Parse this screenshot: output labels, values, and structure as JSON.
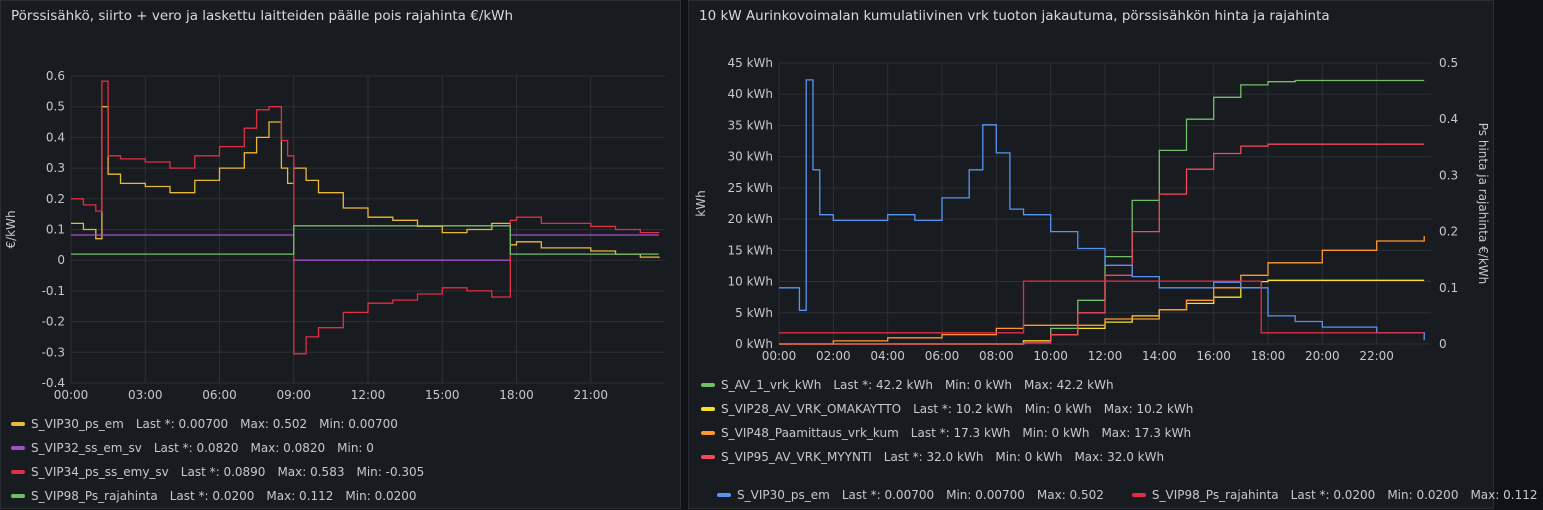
{
  "panels": [
    {
      "title": "Pörssisähkö, siirto + vero ja laskettu laitteiden päälle pois rajahinta €/kWh",
      "legend": [
        {
          "name": "S_VIP30_ps_em",
          "color": "#eab839",
          "stats": [
            "Last *: 0.00700",
            "Max: 0.502",
            "Min: 0.00700"
          ]
        },
        {
          "name": "S_VIP32_ss_em_sv",
          "color": "#a352cc",
          "stats": [
            "Last *: 0.0820",
            "Max: 0.0820",
            "Min: 0"
          ]
        },
        {
          "name": "S_VIP34_ps_ss_emy_sv",
          "color": "#e02f44",
          "stats": [
            "Last *: 0.0890",
            "Max: 0.583",
            "Min: -0.305"
          ]
        },
        {
          "name": "S_VIP98_Ps_rajahinta",
          "color": "#73bf69",
          "stats": [
            "Last *: 0.0200",
            "Max: 0.112",
            "Min: 0.0200"
          ]
        }
      ]
    },
    {
      "title": "10 kW Aurinkovoimalan kumulatiivinen vrk tuoton jakautuma, pörssisähkön hinta ja rajahinta",
      "legend": [
        {
          "name": "S_AV_1_vrk_kWh",
          "color": "#73bf69",
          "stats": [
            "Last *: 42.2 kWh",
            "Min: 0 kWh",
            "Max: 42.2 kWh"
          ]
        },
        {
          "name": "S_VIP28_AV_VRK_OMAKAYTTO",
          "color": "#fade2a",
          "stats": [
            "Last *: 10.2 kWh",
            "Min: 0 kWh",
            "Max: 10.2 kWh"
          ]
        },
        {
          "name": "S_VIP48_Paamittaus_vrk_kum",
          "color": "#ff9830",
          "stats": [
            "Last *: 17.3 kWh",
            "Min: 0 kWh",
            "Max: 17.3 kWh"
          ]
        },
        {
          "name": "S_VIP95_AV_VRK_MYYNTI",
          "color": "#f2495c",
          "stats": [
            "Last *: 32.0 kWh",
            "Min: 0 kWh",
            "Max: 32.0 kWh"
          ]
        }
      ],
      "legend_right": [
        {
          "name": "S_VIP30_ps_em",
          "color": "#5794f2",
          "stats": [
            "Last *: 0.00700",
            "Min: 0.00700",
            "Max: 0.502"
          ]
        },
        {
          "name": "S_VIP98_Ps_rajahinta",
          "color": "#e02f44",
          "stats": [
            "Last *: 0.0200",
            "Min: 0.0200",
            "Max: 0.112"
          ]
        }
      ]
    }
  ],
  "chart_data": [
    {
      "type": "line",
      "ylabel": "€/kWh",
      "ylim": [
        -0.4,
        0.6
      ],
      "yticks": [
        "0.6",
        "0.5",
        "0.4",
        "0.3",
        "0.2",
        "0.1",
        "0",
        "-0.1",
        "-0.2",
        "-0.3",
        "-0.4"
      ],
      "xlim": [
        "00:00",
        "24:00"
      ],
      "xticks": [
        "00:00",
        "03:00",
        "06:00",
        "09:00",
        "12:00",
        "15:00",
        "18:00",
        "21:00"
      ],
      "series": [
        {
          "name": "S_VIP30_ps_em",
          "color": "#eab839",
          "x": [
            "00:00",
            "00:30",
            "01:00",
            "01:15",
            "01:30",
            "02:00",
            "03:00",
            "04:00",
            "05:00",
            "06:00",
            "07:00",
            "07:30",
            "08:00",
            "08:30",
            "08:45",
            "09:00",
            "09:30",
            "10:00",
            "11:00",
            "12:00",
            "13:00",
            "14:00",
            "15:00",
            "16:00",
            "17:00",
            "17:45",
            "18:00",
            "19:00",
            "20:00",
            "21:00",
            "22:00",
            "23:00",
            "23:45"
          ],
          "y": [
            0.12,
            0.1,
            0.07,
            0.5,
            0.28,
            0.25,
            0.24,
            0.22,
            0.26,
            0.3,
            0.35,
            0.4,
            0.45,
            0.3,
            0.25,
            0.3,
            0.26,
            0.22,
            0.17,
            0.14,
            0.13,
            0.11,
            0.09,
            0.1,
            0.12,
            0.05,
            0.06,
            0.04,
            0.04,
            0.03,
            0.02,
            0.01,
            0.007
          ]
        },
        {
          "name": "S_VIP32_ss_em_sv",
          "color": "#a352cc",
          "x": [
            "00:00",
            "08:59",
            "09:00",
            "17:44",
            "17:45",
            "23:45"
          ],
          "y": [
            0.082,
            0.082,
            0,
            0,
            0.082,
            0.082
          ]
        },
        {
          "name": "S_VIP34_ps_ss_emy_sv",
          "color": "#e02f44",
          "x": [
            "00:00",
            "00:30",
            "01:00",
            "01:15",
            "01:30",
            "02:00",
            "03:00",
            "04:00",
            "05:00",
            "06:00",
            "07:00",
            "07:30",
            "08:00",
            "08:30",
            "08:45",
            "09:00",
            "09:30",
            "10:00",
            "11:00",
            "12:00",
            "13:00",
            "14:00",
            "15:00",
            "16:00",
            "17:00",
            "17:45",
            "18:00",
            "19:00",
            "20:00",
            "21:00",
            "22:00",
            "23:00",
            "23:45"
          ],
          "y": [
            0.2,
            0.18,
            0.16,
            0.583,
            0.34,
            0.33,
            0.32,
            0.3,
            0.34,
            0.37,
            0.43,
            0.49,
            0.5,
            0.39,
            0.34,
            -0.305,
            -0.25,
            -0.22,
            -0.17,
            -0.14,
            -0.13,
            -0.11,
            -0.09,
            -0.1,
            -0.12,
            0.13,
            0.14,
            0.12,
            0.12,
            0.11,
            0.1,
            0.09,
            0.089
          ]
        },
        {
          "name": "S_VIP98_Ps_rajahinta",
          "color": "#73bf69",
          "x": [
            "00:00",
            "08:59",
            "09:00",
            "17:44",
            "17:45",
            "23:45"
          ],
          "y": [
            0.02,
            0.02,
            0.112,
            0.112,
            0.02,
            0.02
          ]
        }
      ]
    },
    {
      "type": "line",
      "ylabel": "kWh",
      "ylabel_right": "Ps hinta ja rajahinta €/kWh",
      "ylim": [
        0,
        45
      ],
      "ylim_right": [
        0,
        0.5
      ],
      "yticks": [
        "45 kWh",
        "40 kWh",
        "35 kWh",
        "30 kWh",
        "25 kWh",
        "20 kWh",
        "15 kWh",
        "10 kWh",
        "5 kWh",
        "0 kWh"
      ],
      "yticks_right": [
        "0.5",
        "0.4",
        "0.3",
        "0.2",
        "0.1",
        "0"
      ],
      "xlim": [
        "00:00",
        "24:00"
      ],
      "xticks": [
        "00:00",
        "02:00",
        "04:00",
        "06:00",
        "08:00",
        "10:00",
        "12:00",
        "14:00",
        "16:00",
        "18:00",
        "20:00",
        "22:00"
      ],
      "series": [
        {
          "name": "S_AV_1_vrk_kWh",
          "color": "#73bf69",
          "axis": "left",
          "x": [
            "00:00",
            "08:00",
            "09:00",
            "10:00",
            "11:00",
            "12:00",
            "13:00",
            "14:00",
            "15:00",
            "16:00",
            "17:00",
            "18:00",
            "19:00",
            "23:45"
          ],
          "y": [
            0,
            0,
            0.5,
            2.5,
            7,
            14,
            23,
            31,
            36,
            39.5,
            41.5,
            42,
            42.2,
            42.2
          ]
        },
        {
          "name": "S_VIP28_AV_VRK_OMAKAYTTO",
          "color": "#fade2a",
          "axis": "left",
          "x": [
            "00:00",
            "08:00",
            "09:00",
            "10:00",
            "11:00",
            "12:00",
            "13:00",
            "14:00",
            "15:00",
            "16:00",
            "17:00",
            "17:45",
            "18:00",
            "23:45"
          ],
          "y": [
            0,
            0,
            0.5,
            1.5,
            2.5,
            3.5,
            4.5,
            5.5,
            6.5,
            7.5,
            9,
            10,
            10.2,
            10.2
          ]
        },
        {
          "name": "S_VIP48_Paamittaus_vrk_kum",
          "color": "#ff9830",
          "axis": "left",
          "x": [
            "00:00",
            "02:00",
            "04:00",
            "06:00",
            "08:00",
            "09:00",
            "12:00",
            "14:00",
            "15:00",
            "16:00",
            "17:00",
            "18:00",
            "20:00",
            "22:00",
            "23:45"
          ],
          "y": [
            0,
            0.5,
            1,
            1.5,
            2.5,
            3,
            4,
            5.5,
            7,
            9,
            11,
            13,
            15,
            16.5,
            17.3
          ]
        },
        {
          "name": "S_VIP95_AV_VRK_MYYNTI",
          "color": "#f2495c",
          "axis": "left",
          "x": [
            "00:00",
            "08:00",
            "09:00",
            "10:00",
            "11:00",
            "12:00",
            "13:00",
            "14:00",
            "15:00",
            "16:00",
            "17:00",
            "18:00",
            "23:45"
          ],
          "y": [
            0,
            0,
            0.2,
            1.5,
            5,
            11,
            18,
            24,
            28,
            30.5,
            31.7,
            32,
            32
          ]
        },
        {
          "name": "S_VIP30_ps_em",
          "color": "#5794f2",
          "axis": "right",
          "x": [
            "00:00",
            "00:45",
            "01:00",
            "01:15",
            "01:30",
            "02:00",
            "03:00",
            "04:00",
            "05:00",
            "06:00",
            "07:00",
            "07:30",
            "08:00",
            "08:30",
            "09:00",
            "10:00",
            "11:00",
            "12:00",
            "13:00",
            "14:00",
            "15:00",
            "16:00",
            "17:00",
            "18:00",
            "19:00",
            "20:00",
            "21:00",
            "22:00",
            "23:45"
          ],
          "y": [
            0.1,
            0.06,
            0.47,
            0.31,
            0.23,
            0.22,
            0.22,
            0.23,
            0.22,
            0.26,
            0.31,
            0.39,
            0.34,
            0.24,
            0.23,
            0.2,
            0.17,
            0.14,
            0.12,
            0.1,
            0.1,
            0.11,
            0.1,
            0.05,
            0.04,
            0.03,
            0.03,
            0.02,
            0.007
          ]
        },
        {
          "name": "S_VIP98_Ps_rajahinta",
          "color": "#e02f44",
          "axis": "right",
          "x": [
            "00:00",
            "08:59",
            "09:00",
            "17:44",
            "17:45",
            "23:45"
          ],
          "y": [
            0.02,
            0.02,
            0.112,
            0.112,
            0.02,
            0.02
          ]
        }
      ]
    }
  ]
}
